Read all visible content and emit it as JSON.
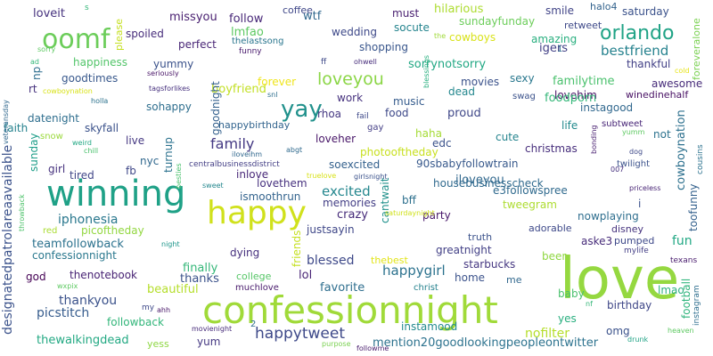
{
  "words": [
    {
      "text": "love",
      "color": "#95d840"
    },
    {
      "text": "confessionnight",
      "color": "#a0da39"
    },
    {
      "text": "winning",
      "color": "#1fa187"
    },
    {
      "text": "happy",
      "color": "#d0e11c"
    },
    {
      "text": "oomf",
      "color": "#6ccd5a"
    },
    {
      "text": "yay",
      "color": "#21918c"
    },
    {
      "text": "orlando",
      "color": "#20a386"
    },
    {
      "text": "happytweet",
      "color": "#3e4989"
    },
    {
      "text": "loveyou",
      "color": "#8bd646"
    },
    {
      "text": "excited",
      "color": "#24878e"
    },
    {
      "text": "family",
      "color": "#443983"
    },
    {
      "text": "bestfriend",
      "color": "#26828e"
    },
    {
      "text": "fun",
      "color": "#22a884"
    },
    {
      "text": "blessed",
      "color": "#3e4989"
    },
    {
      "text": "happygirl",
      "color": "#2c728e"
    },
    {
      "text": "iphonesia",
      "color": "#2a788e"
    },
    {
      "text": "lol",
      "color": "#482475"
    },
    {
      "text": "nofilter",
      "color": "#b5de2b"
    },
    {
      "text": "thankyou",
      "color": "#3b528b"
    },
    {
      "text": "picstitch",
      "color": "#365c8d"
    },
    {
      "text": "teamfollowback",
      "color": "#2c728e"
    },
    {
      "text": "boyfriend",
      "color": "#c2df23"
    },
    {
      "text": "iloveyou",
      "color": "#31688e"
    },
    {
      "text": "crazy",
      "color": "#472c7a"
    },
    {
      "text": "beautiful",
      "color": "#b5de2b"
    },
    {
      "text": "finally",
      "color": "#35b779"
    },
    {
      "text": "thanks",
      "color": "#3b528b"
    },
    {
      "text": "favorite",
      "color": "#2e6e8e"
    },
    {
      "text": "mention20goodlookingpeopleontwitter",
      "color": "#2c728e"
    },
    {
      "text": "thewalkingdead",
      "color": "#23a983"
    },
    {
      "text": "designatedpatrolareaavailable",
      "color": "#3b528b"
    },
    {
      "text": "happiness",
      "color": "#52c569"
    },
    {
      "text": "goodtimes",
      "color": "#38588c"
    },
    {
      "text": "loveit",
      "color": "#46327e"
    },
    {
      "text": "missyou",
      "color": "#481f70"
    },
    {
      "text": "follow",
      "color": "#482878"
    },
    {
      "text": "wtf",
      "color": "#31688e"
    },
    {
      "text": "must",
      "color": "#481f70"
    },
    {
      "text": "hilarious",
      "color": "#addc30"
    },
    {
      "text": "smile",
      "color": "#414487"
    },
    {
      "text": "halo4",
      "color": "#33638d"
    },
    {
      "text": "saturday",
      "color": "#3b528b"
    },
    {
      "text": "coffee",
      "color": "#3f4788"
    },
    {
      "text": "lmfao",
      "color": "#5ec962"
    },
    {
      "text": "wedding",
      "color": "#3e4989"
    },
    {
      "text": "socute",
      "color": "#25848e"
    },
    {
      "text": "sundayfunday",
      "color": "#6ccd5a"
    },
    {
      "text": "retweet",
      "color": "#3e4989"
    },
    {
      "text": "foreveralone",
      "color": "#7ad151"
    },
    {
      "text": "cowboys",
      "color": "#d8e219"
    },
    {
      "text": "igers",
      "color": "#424086"
    },
    {
      "text": "spoiled",
      "color": "#472d7b"
    },
    {
      "text": "perfect",
      "color": "#482576"
    },
    {
      "text": "thelastsong",
      "color": "#2a768e"
    },
    {
      "text": "funny",
      "color": "#481a6c"
    },
    {
      "text": "shopping",
      "color": "#39568c"
    },
    {
      "text": "amazing",
      "color": "#29af7f"
    },
    {
      "text": "thankful",
      "color": "#424086"
    },
    {
      "text": "yummy",
      "color": "#3b528b"
    },
    {
      "text": "sorrynotsorry",
      "color": "#22a884"
    },
    {
      "text": "familytime",
      "color": "#4ac16d"
    },
    {
      "text": "awesome",
      "color": "#472c7a"
    },
    {
      "text": "lovehim",
      "color": "#471164"
    },
    {
      "text": "winedinehalf",
      "color": "#471063"
    },
    {
      "text": "cowboynation",
      "color": "#2d708e"
    },
    {
      "text": "toofunny",
      "color": "#34618d"
    },
    {
      "text": "foodporn",
      "color": "#35b779"
    },
    {
      "text": "instagood",
      "color": "#31688e"
    },
    {
      "text": "forever",
      "color": "#efe51c"
    },
    {
      "text": "work",
      "color": "#46327e"
    },
    {
      "text": "music",
      "color": "#365c8d"
    },
    {
      "text": "movies",
      "color": "#3b528b"
    },
    {
      "text": "sexy",
      "color": "#2a788e"
    },
    {
      "text": "dead",
      "color": "#24878e"
    },
    {
      "text": "swag",
      "color": "#3b528b"
    },
    {
      "text": "goodnight",
      "color": "#34618d"
    },
    {
      "text": "sohappy",
      "color": "#2e6e8e"
    },
    {
      "text": "rhoa",
      "color": "#453882"
    },
    {
      "text": "food",
      "color": "#3e4989"
    },
    {
      "text": "proud",
      "color": "#3f4788"
    },
    {
      "text": "skyfall",
      "color": "#3b528b"
    },
    {
      "text": "live",
      "color": "#453882"
    },
    {
      "text": "happybirthday",
      "color": "#32648e"
    },
    {
      "text": "loveher",
      "color": "#481668"
    },
    {
      "text": "haha",
      "color": "#a5db36"
    },
    {
      "text": "edc",
      "color": "#3b528b"
    },
    {
      "text": "cute",
      "color": "#25848e"
    },
    {
      "text": "christmas",
      "color": "#472e7c"
    },
    {
      "text": "life",
      "color": "#238a8d"
    },
    {
      "text": "subtweet",
      "color": "#482677"
    },
    {
      "text": "not",
      "color": "#2c728e"
    },
    {
      "text": "nyc",
      "color": "#31688e"
    },
    {
      "text": "fb",
      "color": "#3f4788"
    },
    {
      "text": "tired",
      "color": "#404688"
    },
    {
      "text": "sunday",
      "color": "#1f9e89"
    },
    {
      "text": "girl",
      "color": "#46327e"
    },
    {
      "text": "datenight",
      "color": "#2e6e8e"
    },
    {
      "text": "faith",
      "color": "#26828e"
    },
    {
      "text": "snow",
      "color": "#9bd93c"
    },
    {
      "text": "photooftheday",
      "color": "#c8e020"
    },
    {
      "text": "soexcited",
      "color": "#34618d"
    },
    {
      "text": "90sbabyfollowtrain",
      "color": "#38598c"
    },
    {
      "text": "housebusinesscheck",
      "color": "#306a8e"
    },
    {
      "text": "e3followspree",
      "color": "#306a8e"
    },
    {
      "text": "tweegram",
      "color": "#addc30"
    },
    {
      "text": "inlove",
      "color": "#482878"
    },
    {
      "text": "lovethem",
      "color": "#46307e"
    },
    {
      "text": "ismoothrun",
      "color": "#33638d"
    },
    {
      "text": "memories",
      "color": "#433e85"
    },
    {
      "text": "justsayin",
      "color": "#3f4788"
    },
    {
      "text": "cantwait",
      "color": "#21918c"
    },
    {
      "text": "bff",
      "color": "#2d708e"
    },
    {
      "text": "party",
      "color": "#48186a"
    },
    {
      "text": "adorable",
      "color": "#3e4989"
    },
    {
      "text": "nowplaying",
      "color": "#2e6e8e"
    },
    {
      "text": "disney",
      "color": "#46337e"
    },
    {
      "text": "i",
      "color": "#3b528b"
    },
    {
      "text": "turnup",
      "color": "#2c728e"
    },
    {
      "text": "picoftheday",
      "color": "#93d741"
    },
    {
      "text": "red",
      "color": "#aadc32"
    },
    {
      "text": "confessionnight_small",
      "display": "confessionnight",
      "color": "#2a788e"
    },
    {
      "text": "truth",
      "color": "#3b528b"
    },
    {
      "text": "greatnight",
      "color": "#424086"
    },
    {
      "text": "aske3",
      "color": "#472c7a"
    },
    {
      "text": "pumped",
      "color": "#3e4989"
    },
    {
      "text": "mylife",
      "color": "#433e85"
    },
    {
      "text": "texans",
      "color": "#481b6d"
    },
    {
      "text": "beer",
      "color": "#90d743"
    },
    {
      "text": "thebest",
      "color": "#e2e418"
    },
    {
      "text": "starbucks",
      "color": "#453781"
    },
    {
      "text": "lmao",
      "color": "#2ab07f"
    },
    {
      "text": "football",
      "color": "#2fb47c"
    },
    {
      "text": "instagram",
      "color": "#2e6e8e"
    },
    {
      "text": "friends",
      "color": "#c5e021"
    },
    {
      "text": "thenotebook",
      "color": "#482374"
    },
    {
      "text": "god",
      "color": "#440154"
    },
    {
      "text": "dying",
      "color": "#46307e"
    },
    {
      "text": "college",
      "color": "#56c667"
    },
    {
      "text": "home",
      "color": "#3b528b"
    },
    {
      "text": "me",
      "color": "#31688e"
    },
    {
      "text": "baby",
      "color": "#4ac16d"
    },
    {
      "text": "birthday",
      "color": "#3f4788"
    },
    {
      "text": "christ",
      "color": "#26828e"
    },
    {
      "text": "muchlove",
      "color": "#481a6c"
    },
    {
      "text": "followback",
      "color": "#32b67a"
    },
    {
      "text": "yes",
      "color": "#29af7f"
    },
    {
      "text": "omg",
      "color": "#3b528b"
    },
    {
      "text": "instamood",
      "color": "#23898e"
    },
    {
      "text": "yum",
      "color": "#453882"
    },
    {
      "text": "yess",
      "color": "#8fd744"
    },
    {
      "text": "followme",
      "color": "#481b6d"
    },
    {
      "text": "purpose",
      "color": "#7ad151"
    },
    {
      "text": "movienight",
      "color": "#472c7a"
    },
    {
      "text": "ahh",
      "color": "#481769"
    },
    {
      "text": "my",
      "color": "#3e4989"
    },
    {
      "text": "wxpix",
      "color": "#5ec962"
    },
    {
      "text": "night",
      "color": "#1f968b"
    },
    {
      "text": "throwback",
      "color": "#4ec36b"
    },
    {
      "text": "veteransday",
      "color": "#31688e"
    },
    {
      "text": "weird",
      "color": "#22a884"
    },
    {
      "text": "chill",
      "color": "#4ac16d"
    },
    {
      "text": "besties",
      "color": "#4ac16d"
    },
    {
      "text": "sweet",
      "color": "#24878e"
    },
    {
      "text": "iloveihm",
      "color": "#31688e"
    },
    {
      "text": "centralbusinessdistrict",
      "color": "#433e85"
    },
    {
      "text": "truelove",
      "color": "#d8e219"
    },
    {
      "text": "girlsnight",
      "color": "#3b528b"
    },
    {
      "text": "saturdaynight",
      "color": "#d0e11c"
    },
    {
      "text": "abgt",
      "color": "#306a8e"
    },
    {
      "text": "gay",
      "color": "#433e85"
    },
    {
      "text": "fail",
      "color": "#3e4989"
    },
    {
      "text": "snl",
      "color": "#2e6e8e"
    },
    {
      "text": "bonding",
      "color": "#481f70"
    },
    {
      "text": "dog",
      "color": "#3e4989"
    },
    {
      "text": "yumm",
      "color": "#5ec962"
    },
    {
      "text": "twilight",
      "color": "#3b528b"
    },
    {
      "text": "priceless",
      "color": "#482475"
    },
    {
      "text": "007",
      "color": "#46307e"
    },
    {
      "text": "cold",
      "color": "#e7e419"
    },
    {
      "text": "cousins",
      "color": "#2c728e"
    },
    {
      "text": "heaven",
      "color": "#5ec962"
    },
    {
      "text": "drunk",
      "color": "#20a386"
    },
    {
      "text": "nf",
      "color": "#35b779"
    },
    {
      "text": "holla",
      "color": "#2c728e"
    },
    {
      "text": "tagsforlikes",
      "color": "#46307e"
    },
    {
      "text": "cowboynation_small",
      "display": "cowboynation",
      "color": "#d8e219"
    },
    {
      "text": "rt",
      "color": "#46327e"
    },
    {
      "text": "np",
      "color": "#2e6e8e"
    },
    {
      "text": "sorry",
      "color": "#5ec962"
    },
    {
      "text": "ad",
      "color": "#35b779"
    },
    {
      "text": "seriously",
      "color": "#481467"
    },
    {
      "text": "please",
      "color": "#c5e021"
    },
    {
      "text": "s",
      "color": "#35b779"
    },
    {
      "text": "the",
      "color": "#a0da39"
    },
    {
      "text": "ff",
      "color": "#3e4989"
    },
    {
      "text": "ohwell",
      "color": "#472d7b"
    },
    {
      "text": "blessings",
      "color": "#29af7f"
    },
    {
      "text": "1",
      "color": "#2e6e8e"
    },
    {
      "text": "2",
      "color": "#2e6e8e"
    }
  ]
}
